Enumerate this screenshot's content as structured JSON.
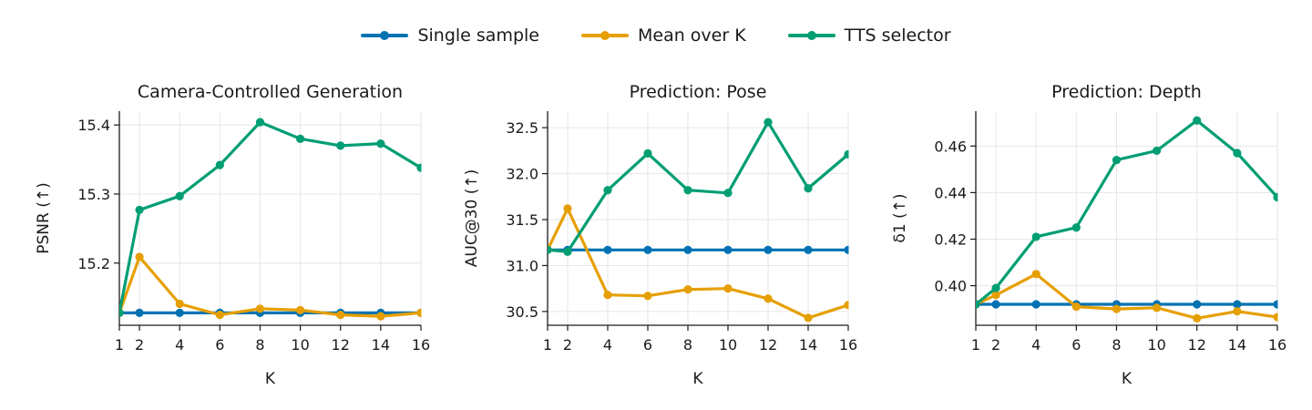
{
  "legend": [
    {
      "label": "Single sample",
      "color": "#0072B2"
    },
    {
      "label": "Mean over K",
      "color": "#E69F00"
    },
    {
      "label": "TTS selector",
      "color": "#009E73"
    }
  ],
  "chart_data": [
    {
      "type": "line",
      "title": "Camera-Controlled Generation",
      "xlabel": "K",
      "ylabel": "PSNR (↑)",
      "x": [
        1,
        2,
        4,
        6,
        8,
        10,
        12,
        14,
        16
      ],
      "xticks": [
        1,
        2,
        4,
        6,
        8,
        10,
        12,
        14,
        16
      ],
      "xlim": [
        1,
        16
      ],
      "ylim": [
        15.11,
        15.42
      ],
      "yticks": [
        15.2,
        15.3,
        15.4
      ],
      "ytick_labels": [
        "15.2",
        "15.3",
        "15.4"
      ],
      "grid": true,
      "series": [
        {
          "name": "Single sample",
          "color": "#0072B2",
          "values": [
            15.128,
            15.128,
            15.128,
            15.128,
            15.128,
            15.128,
            15.128,
            15.128,
            15.128
          ]
        },
        {
          "name": "Mean over K",
          "color": "#E69F00",
          "values": [
            15.128,
            15.209,
            15.141,
            15.125,
            15.134,
            15.132,
            15.125,
            15.123,
            15.128
          ]
        },
        {
          "name": "TTS selector",
          "color": "#009E73",
          "values": [
            15.128,
            15.277,
            15.297,
            15.342,
            15.404,
            15.38,
            15.37,
            15.373,
            15.338
          ]
        }
      ]
    },
    {
      "type": "line",
      "title": "Prediction: Pose",
      "xlabel": "K",
      "ylabel": "AUC@30 (↑)",
      "x": [
        1,
        2,
        4,
        6,
        8,
        10,
        12,
        14,
        16
      ],
      "xticks": [
        1,
        2,
        4,
        6,
        8,
        10,
        12,
        14,
        16
      ],
      "xlim": [
        1,
        16
      ],
      "ylim": [
        30.35,
        32.68
      ],
      "yticks": [
        30.5,
        31.0,
        31.5,
        32.0,
        32.5
      ],
      "ytick_labels": [
        "30.5",
        "31.0",
        "31.5",
        "32.0",
        "32.5"
      ],
      "grid": true,
      "series": [
        {
          "name": "Single sample",
          "color": "#0072B2",
          "values": [
            31.17,
            31.17,
            31.17,
            31.17,
            31.17,
            31.17,
            31.17,
            31.17,
            31.17
          ]
        },
        {
          "name": "Mean over K",
          "color": "#E69F00",
          "values": [
            31.17,
            31.62,
            30.68,
            30.67,
            30.74,
            30.75,
            30.64,
            30.43,
            30.57
          ]
        },
        {
          "name": "TTS selector",
          "color": "#009E73",
          "values": [
            31.17,
            31.15,
            31.82,
            32.22,
            31.82,
            31.79,
            32.56,
            31.84,
            32.21
          ]
        }
      ]
    },
    {
      "type": "line",
      "title": "Prediction: Depth",
      "xlabel": "K",
      "ylabel": "δ1 (↑)",
      "x": [
        1,
        2,
        4,
        6,
        8,
        10,
        12,
        14,
        16
      ],
      "xticks": [
        1,
        2,
        4,
        6,
        8,
        10,
        12,
        14,
        16
      ],
      "xlim": [
        1,
        16
      ],
      "ylim": [
        0.383,
        0.475
      ],
      "yticks": [
        0.4,
        0.42,
        0.44,
        0.46
      ],
      "ytick_labels": [
        "0.40",
        "0.42",
        "0.44",
        "0.46"
      ],
      "grid": true,
      "series": [
        {
          "name": "Single sample",
          "color": "#0072B2",
          "values": [
            0.392,
            0.392,
            0.392,
            0.392,
            0.392,
            0.392,
            0.392,
            0.392,
            0.392
          ]
        },
        {
          "name": "Mean over K",
          "color": "#E69F00",
          "values": [
            0.392,
            0.396,
            0.405,
            0.391,
            0.39,
            0.3905,
            0.386,
            0.389,
            0.3865
          ]
        },
        {
          "name": "TTS selector",
          "color": "#009E73",
          "values": [
            0.392,
            0.399,
            0.421,
            0.425,
            0.454,
            0.458,
            0.471,
            0.457,
            0.438
          ]
        }
      ]
    }
  ]
}
